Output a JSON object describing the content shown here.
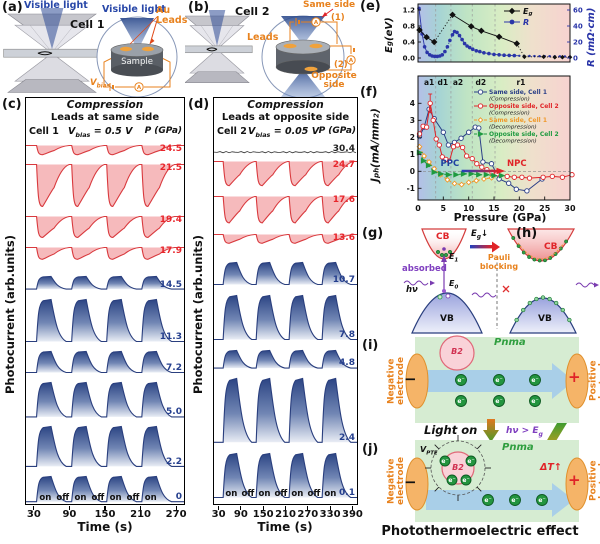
{
  "colors": {
    "red_trace": "#d93a3e",
    "blue_trace": "#2a3f7e",
    "orange": "#e8821e",
    "green_phase": "#2f9e3f",
    "purple": "#8040c0",
    "accent_red": "#e02428",
    "accent_blue": "#2b3f87",
    "electrode_orange": "#f5b468",
    "bg_green": "#d6ecd2"
  },
  "panel_a": {
    "tag": "(a)",
    "light1": "Visible light",
    "light2": "Visible light",
    "cell": "Cell 1",
    "sample": "Sample",
    "au_leads": "Au Leads",
    "vbias": "V_{bias}",
    "ammeter": "A"
  },
  "panel_b": {
    "tag": "(b)",
    "cell": "Cell 2",
    "leads": "Leads",
    "same_side": "Same side",
    "n1": "(1)",
    "n2": "(2)",
    "opposite_side": "Opposite side",
    "ammeter": "A"
  },
  "panel_c": {
    "tag": "(c)",
    "title": "Compression",
    "subtitle": "Leads at same side",
    "cell": "Cell 1",
    "vbias": "V_{bias} = 0.5 V",
    "p_header": "P (GPa)",
    "ylabel": "Photocurrent (arb.units)",
    "xlabel": "Time (s)",
    "on_off": [
      "on",
      "off",
      "on",
      "off",
      "on",
      "off",
      "on"
    ]
  },
  "panel_d": {
    "tag": "(d)",
    "title": "Compression",
    "subtitle": "Leads at opposite side",
    "cell": "Cell 2",
    "vbias": "V_{bias} = 0.05 V",
    "p_header": "P (GPa)",
    "ylabel": "Photocurrent (arb.units)",
    "xlabel": "Time (s)",
    "on_off": [
      "on",
      "off",
      "on",
      "off",
      "on",
      "off",
      "on"
    ]
  },
  "panel_e": {
    "tag": "(e)",
    "ylabel_left": "E_{g} (eV)",
    "ylabel_right": "R (mΩ·cm)",
    "legend": [
      {
        "label": "E_{g}",
        "color": "#111111"
      },
      {
        "label": "R",
        "color": "#2a35a8"
      }
    ]
  },
  "panel_f": {
    "tag": "(f)",
    "ylabel": "J_{ph}(mA/mm^{2})",
    "xlabel": "Pressure (GPa)",
    "ppc": "PPC",
    "npc": "NPC"
  },
  "panel_g": {
    "tag": "(g)",
    "cb": "CB",
    "vb": "VB",
    "e1": "E_{1}",
    "e0": "E_{0}",
    "absorbed": "absorbed",
    "hv": "hν",
    "eg_arrow": "E_{g}↓"
  },
  "panel_h": {
    "tag": "(h)",
    "cb": "CB",
    "vb": "VB",
    "pauli": "Pauli blocking"
  },
  "panel_i": {
    "tag": "(i)",
    "pnma": "Pnma",
    "b2": "B2",
    "minus": "−",
    "plus": "+",
    "neg_electrode": "Negative electrode",
    "pos_electrode": "Positive electrode",
    "electron": "e⁻"
  },
  "mid": {
    "light_on": "Light on",
    "hv_gt": "hν > E_{g}"
  },
  "panel_j": {
    "tag": "(j)",
    "pnma": "Pnma",
    "b2": "B2",
    "vpte": "V_{PTE}",
    "dt": "ΔT↑",
    "minus": "−",
    "plus": "+",
    "neg_electrode": "Negative electrode",
    "pos_electrode": "Positive electrode",
    "electron": "e⁻"
  },
  "caption": "Photothermoelectric effect",
  "chart_data": [
    {
      "id": "e",
      "type": "line",
      "xlim": [
        0,
        30
      ],
      "ylabel_left": "Eg (eV)",
      "ylabel_right": "R (mOhm·cm)",
      "ylim_left": [
        0,
        1.3
      ],
      "ylim_right": [
        0,
        65
      ],
      "yticks_left": [
        "0.0",
        "0.4",
        "0.8",
        "1.2"
      ],
      "yticks_right": [
        "0",
        "20",
        "40",
        "60"
      ],
      "phase_boundaries": [
        3.5,
        6.5,
        10.7,
        15.2
      ],
      "series": [
        {
          "name": "Eg",
          "color": "#111111",
          "marker": "diamond",
          "dotted_from": 8,
          "gaps": [
            [
              2,
              3
            ]
          ],
          "x": [
            0.3,
            1.7,
            3.2,
            6.8,
            10.5,
            12.5,
            16,
            19.5,
            21,
            24.8,
            27,
            28.5,
            30
          ],
          "y": [
            0.7,
            0.52,
            0.4,
            1.08,
            0.79,
            0.68,
            0.53,
            0.36,
            0.03,
            0.03,
            0.02,
            0.02,
            0.02
          ]
        },
        {
          "name": "R",
          "color": "#2a35a8",
          "marker": "circle",
          "dotted_from": 31,
          "gaps": [
            [
              9,
              13
            ]
          ],
          "x": [
            0.2,
            0.8,
            1.3,
            1.8,
            2.3,
            2.8,
            3.3,
            3.8,
            4.3,
            4.8,
            5.3,
            5.8,
            6.3,
            6.8,
            7.2,
            7.7,
            8.2,
            8.7,
            9.2,
            9.7,
            10.2,
            10.8,
            11.5,
            12.2,
            13,
            14,
            15,
            16,
            17,
            18,
            19,
            20,
            21,
            22,
            23,
            24,
            25,
            26,
            27,
            28,
            29,
            30
          ],
          "y": [
            62,
            30,
            14,
            7,
            4,
            2.5,
            2,
            2,
            2.5,
            4,
            8,
            14,
            22,
            29,
            33,
            32,
            28,
            23,
            18,
            15,
            13,
            11,
            9,
            8,
            6.5,
            5.5,
            4.5,
            4,
            3.5,
            3.2,
            3,
            2.8,
            2.6,
            2.5,
            2.4,
            2.3,
            2.2,
            2.2,
            2.1,
            2.1,
            2,
            2
          ]
        }
      ]
    },
    {
      "id": "f",
      "type": "line",
      "xlim": [
        0,
        30
      ],
      "ylim": [
        -1.8,
        4.9
      ],
      "xlabel": "Pressure (GPa)",
      "ylabel": "Jph (mA/mm2)",
      "xticks": [
        0,
        5,
        10,
        15,
        20,
        25,
        30
      ],
      "yticks": [
        -1,
        0,
        1,
        2,
        3,
        4
      ],
      "phase_labels": [
        {
          "t": "a1",
          "x": 2.2
        },
        {
          "t": "d1",
          "x": 4.9
        },
        {
          "t": "a2",
          "x": 7.9
        },
        {
          "t": "d2",
          "x": 12.4
        },
        {
          "t": "r1",
          "x": 20.3
        }
      ],
      "phase_boundaries": [
        3.5,
        6.5,
        10.7,
        15.2
      ],
      "annotations": {
        "ppc": "PPC",
        "npc": "NPC"
      },
      "series": [
        {
          "name": "Same side, Cell 1",
          "state": "(Compression)",
          "color": "#2b3f87",
          "dash": false,
          "marker": "circle",
          "x": [
            0.3,
            1.2,
            2.2,
            3.2,
            5.0,
            6.0,
            7.2,
            8.5,
            10,
            11.3,
            12,
            12.8,
            14.5,
            16,
            17.9,
            19.4,
            21.5,
            24.5
          ],
          "y": [
            2.05,
            2.6,
            3.65,
            3.1,
            2.3,
            1.55,
            1.7,
            1.95,
            2.3,
            2.6,
            2.55,
            0.55,
            0.45,
            -0.45,
            -0.7,
            -1.05,
            -1.15,
            -0.45
          ]
        },
        {
          "name": "Opposite side, Cell 2",
          "state": "(Compression)",
          "color": "#e02428",
          "dash": false,
          "marker": "circle",
          "error_bar": {
            "index": 3,
            "value": 0.55
          },
          "x": [
            0.3,
            1.0,
            1.7,
            2.4,
            3.0,
            3.6,
            4.2,
            4.8,
            5.5,
            6.2,
            7.0,
            7.8,
            8.8,
            9.6,
            10.7,
            11.6,
            12.6,
            13.6,
            14.6,
            15.6,
            17.6,
            19,
            20.5,
            22,
            24.7,
            26.5,
            28.5,
            30.4
          ],
          "y": [
            2.2,
            2.65,
            2.6,
            4.0,
            3.0,
            1.9,
            1.55,
            0.85,
            0.7,
            0.6,
            1.45,
            1.55,
            1.4,
            0.9,
            0.75,
            0.45,
            0.25,
            0.1,
            -0.05,
            -0.15,
            -0.3,
            -0.35,
            -0.35,
            -0.4,
            -0.35,
            -0.3,
            -0.35,
            -0.2
          ]
        },
        {
          "name": "Same side, Cell 1",
          "state": "(Decompression)",
          "color": "#f0992a",
          "dash": true,
          "marker": "diamond",
          "x": [
            0.3,
            1.2,
            2.2,
            3.2,
            4.4,
            5.8,
            7.2,
            8.6,
            10,
            11.5,
            13,
            14.5
          ],
          "y": [
            1.45,
            0.9,
            0.55,
            0.15,
            -0.2,
            -0.5,
            -0.72,
            -0.78,
            -0.65,
            -0.55,
            -0.45,
            -0.38
          ]
        },
        {
          "name": "Opposite side, Cell 2",
          "state": "(Decompression)",
          "color": "#1f9a40",
          "dash": true,
          "marker": "triangle",
          "x": [
            0.3,
            1.1,
            2.1,
            3.2,
            4.5,
            6,
            7.5,
            9,
            10.5,
            12,
            13.5,
            15,
            16.5
          ],
          "y": [
            1.1,
            0.62,
            0.35,
            -0.05,
            -0.15,
            -0.2,
            -0.2,
            -0.15,
            -0.15,
            -0.2,
            -0.2,
            -0.25,
            -0.25
          ]
        }
      ]
    },
    {
      "id": "c",
      "type": "pulse-stack",
      "xlim": [
        15,
        285
      ],
      "xticks": [
        30,
        90,
        150,
        210,
        270
      ],
      "pulse": {
        "start": 33,
        "on": 30,
        "off": 30,
        "count": 4
      },
      "traces": [
        {
          "p": "24.5",
          "amp": -0.22
        },
        {
          "p": "21.5",
          "amp": -1.0
        },
        {
          "p": "19.4",
          "amp": -0.5
        },
        {
          "p": "17.9",
          "amp": -0.28
        },
        {
          "p": "14.5",
          "amp": 0.3
        },
        {
          "p": "11.3",
          "amp": 1.0
        },
        {
          "p": "7.2",
          "amp": 0.5
        },
        {
          "p": "5.0",
          "amp": 0.82
        },
        {
          "p": "2.2",
          "amp": 0.95
        },
        {
          "p": "0",
          "amp": 0.6
        }
      ]
    },
    {
      "id": "d",
      "type": "pulse-stack",
      "xlim": [
        15,
        405
      ],
      "xticks": [
        30,
        90,
        150,
        210,
        270,
        330,
        390
      ],
      "pulse": {
        "start": 40,
        "on": 45,
        "off": 45,
        "count": 4
      },
      "traces": [
        {
          "p": "30.4",
          "amp": 0
        },
        {
          "p": "24.7",
          "amp": -0.55
        },
        {
          "p": "17.6",
          "amp": -0.6
        },
        {
          "p": "13.6",
          "amp": -0.2
        },
        {
          "p": "10.7",
          "amp": 0.5
        },
        {
          "p": "7.8",
          "amp": 1.0
        },
        {
          "p": "4.8",
          "amp": 0.4
        },
        {
          "p": "2.4",
          "amp": 1.45
        },
        {
          "p": "0.1",
          "amp": 1.0
        }
      ]
    }
  ]
}
